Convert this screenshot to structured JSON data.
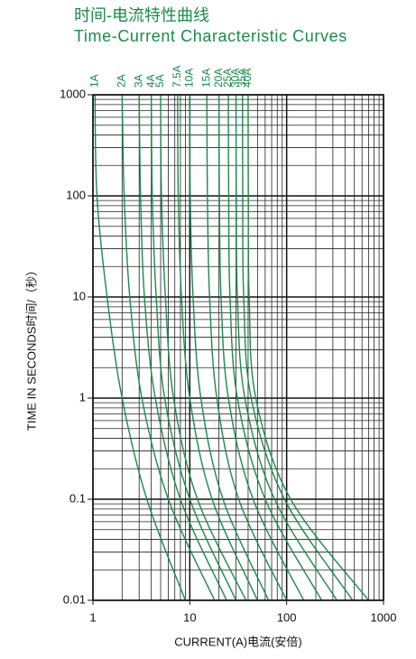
{
  "chart_data": {
    "type": "line",
    "title": "时间-电流特性曲线",
    "subtitle": "Time-Current Characteristic Curves",
    "x_label": "CURRENT(A)电流(安倍)",
    "y_label": "TIME IN SECONDS时间/（秒）",
    "log_x": true,
    "log_y": true,
    "grid": true,
    "xlim": [
      1,
      1000
    ],
    "ylim": [
      0.01,
      1000
    ],
    "xticks": [
      1,
      10,
      100,
      1000
    ],
    "yticks": [
      0.01,
      0.1,
      1,
      10,
      100,
      1000
    ],
    "series": [
      {
        "name": "1A",
        "color": "#1a8a4a",
        "x": [
          1.05,
          1.1,
          1.4,
          2.0,
          3.6,
          9
        ],
        "values": [
          1000,
          100,
          10,
          1,
          0.1,
          0.01
        ]
      },
      {
        "name": "2A",
        "color": "#1a8a4a",
        "x": [
          2,
          2.1,
          2.4,
          3.2,
          6,
          18
        ],
        "values": [
          1000,
          100,
          10,
          1,
          0.1,
          0.01
        ]
      },
      {
        "name": "3A",
        "color": "#1a8a4a",
        "x": [
          3,
          3.1,
          3.4,
          4.4,
          8,
          24
        ],
        "values": [
          1000,
          100,
          10,
          1,
          0.1,
          0.01
        ]
      },
      {
        "name": "4A",
        "color": "#1a8a4a",
        "x": [
          4,
          4.1,
          4.5,
          5.5,
          10,
          30
        ],
        "values": [
          1000,
          100,
          10,
          1,
          0.1,
          0.01
        ]
      },
      {
        "name": "5A",
        "color": "#1a8a4a",
        "x": [
          5,
          5.1,
          5.6,
          6.8,
          12,
          38
        ],
        "values": [
          1000,
          100,
          10,
          1,
          0.1,
          0.01
        ]
      },
      {
        "name": "7.5A",
        "color": "#1a8a4a",
        "x": [
          7.5,
          7.6,
          8.2,
          10,
          17,
          50
        ],
        "values": [
          1000,
          100,
          10,
          1,
          0.1,
          0.01
        ]
      },
      {
        "name": "10A",
        "color": "#1a8a4a",
        "x": [
          10,
          10.1,
          10.8,
          13,
          22,
          65
        ],
        "values": [
          1000,
          100,
          10,
          1,
          0.1,
          0.01
        ]
      },
      {
        "name": "15A",
        "color": "#1a8a4a",
        "x": [
          15,
          15.2,
          16,
          19,
          32,
          100
        ],
        "values": [
          1000,
          100,
          10,
          1,
          0.1,
          0.01
        ]
      },
      {
        "name": "20A",
        "color": "#1a8a4a",
        "x": [
          20,
          20.2,
          21,
          25,
          45,
          150
        ],
        "values": [
          1000,
          100,
          10,
          1,
          0.1,
          0.01
        ]
      },
      {
        "name": "25A",
        "color": "#1a8a4a",
        "x": [
          25,
          25.2,
          26,
          31,
          60,
          230
        ],
        "values": [
          1000,
          100,
          10,
          1,
          0.1,
          0.01
        ]
      },
      {
        "name": "30A",
        "color": "#1a8a4a",
        "x": [
          30,
          30.2,
          31,
          37,
          75,
          330
        ],
        "values": [
          1000,
          100,
          10,
          1,
          0.1,
          0.01
        ]
      },
      {
        "name": "35A",
        "color": "#1a8a4a",
        "x": [
          35,
          35.2,
          36,
          43,
          95,
          480
        ],
        "values": [
          1000,
          100,
          10,
          1,
          0.1,
          0.01
        ]
      },
      {
        "name": "40A",
        "color": "#1a8a4a",
        "x": [
          40,
          40.2,
          41,
          48,
          110,
          700
        ],
        "values": [
          1000,
          100,
          10,
          1,
          0.1,
          0.01
        ]
      }
    ]
  }
}
